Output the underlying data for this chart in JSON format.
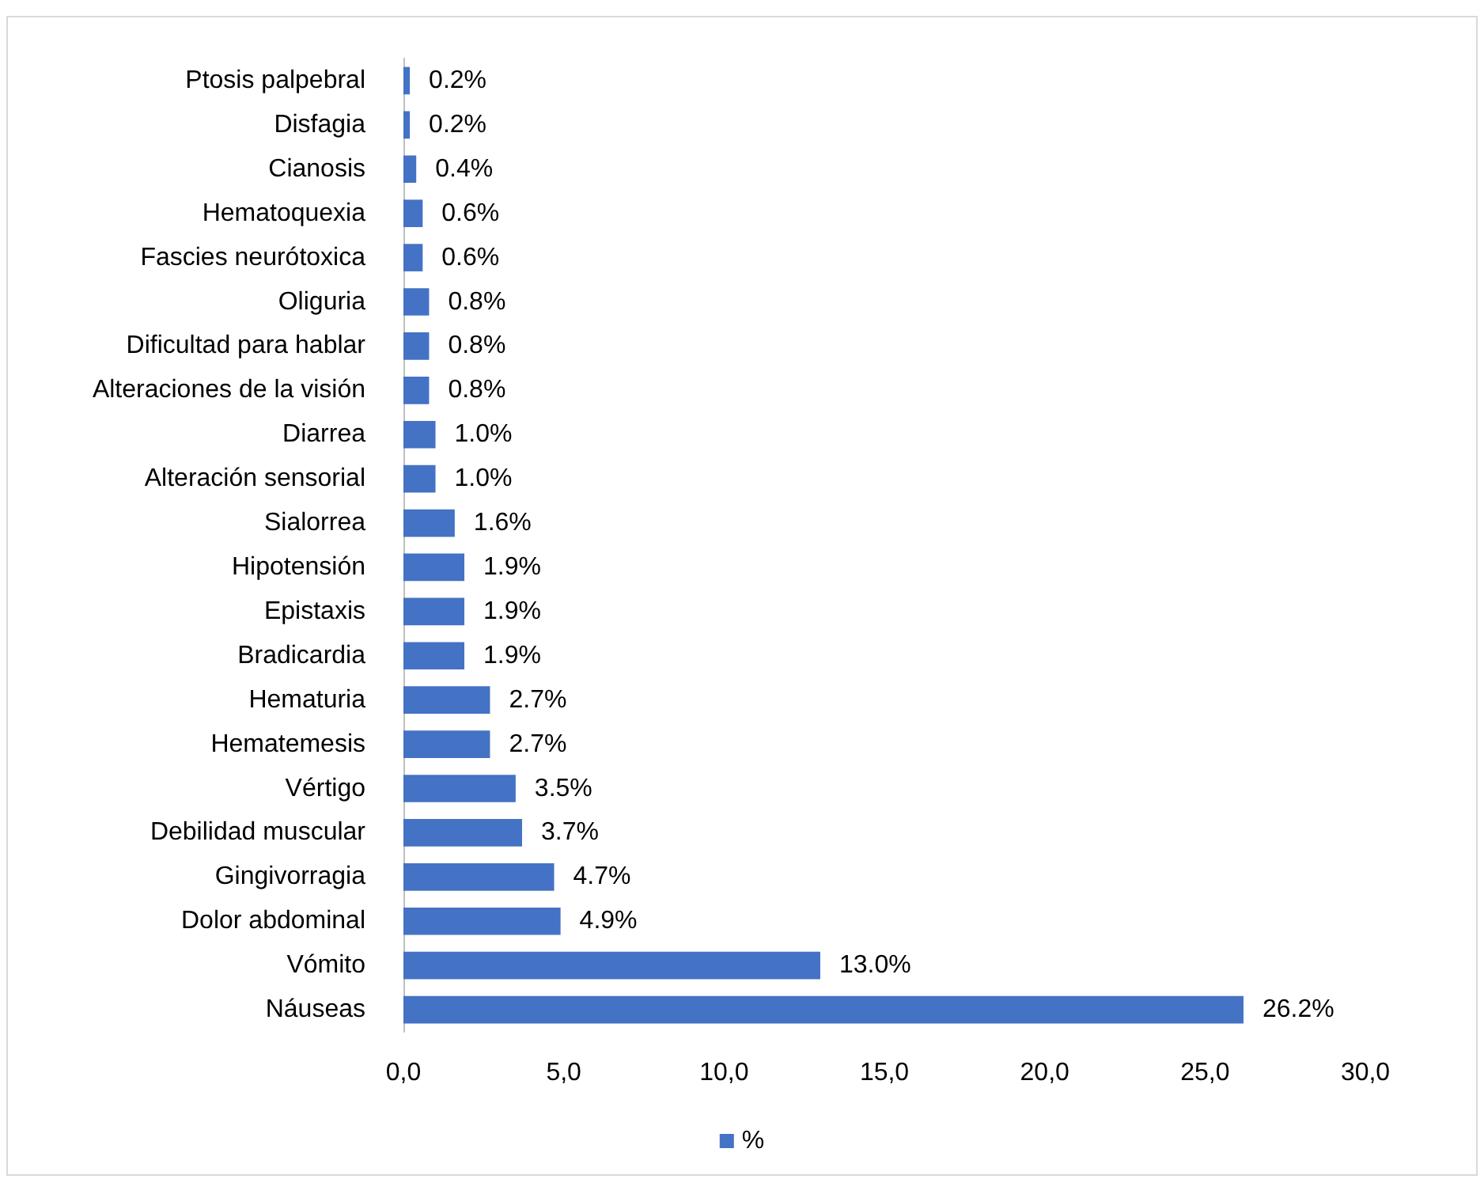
{
  "chart_data": {
    "type": "bar",
    "orientation": "horizontal",
    "categories": [
      "Ptosis palpebral",
      "Disfagia",
      "Cianosis",
      "Hematoquexia",
      "Fascies neurótoxica",
      "Oliguria",
      "Dificultad para hablar",
      "Alteraciones de la visión",
      "Diarrea",
      "Alteración sensorial",
      "Sialorrea",
      "Hipotensión",
      "Epistaxis",
      "Bradicardia",
      "Hematuria",
      "Hematemesis",
      "Vértigo",
      "Debilidad muscular",
      "Gingivorragia",
      "Dolor abdominal",
      "Vómito",
      "Náuseas"
    ],
    "series": [
      {
        "name": "%",
        "color": "#4472c4",
        "values": [
          0.2,
          0.2,
          0.4,
          0.6,
          0.6,
          0.8,
          0.8,
          0.8,
          1.0,
          1.0,
          1.6,
          1.9,
          1.9,
          1.9,
          2.7,
          2.7,
          3.5,
          3.7,
          4.7,
          4.9,
          13.0,
          26.2
        ],
        "value_labels": [
          "0.2%",
          "0.2%",
          "0.4%",
          "0.6%",
          "0.6%",
          "0.8%",
          "0.8%",
          "0.8%",
          "1.0%",
          "1.0%",
          "1.6%",
          "1.9%",
          "1.9%",
          "1.9%",
          "2.7%",
          "2.7%",
          "3.5%",
          "3.7%",
          "4.7%",
          "4.9%",
          "13.0%",
          "26.2%"
        ]
      }
    ],
    "xlim": [
      0,
      30
    ],
    "xticks": [
      {
        "value": 0,
        "label": "0,0"
      },
      {
        "value": 5,
        "label": "5,0"
      },
      {
        "value": 10,
        "label": "10,0"
      },
      {
        "value": 15,
        "label": "15,0"
      },
      {
        "value": 20,
        "label": "20,0"
      },
      {
        "value": 25,
        "label": "25,0"
      },
      {
        "value": 30,
        "label": "30,0"
      }
    ],
    "grid": false,
    "legend": "bottom"
  }
}
